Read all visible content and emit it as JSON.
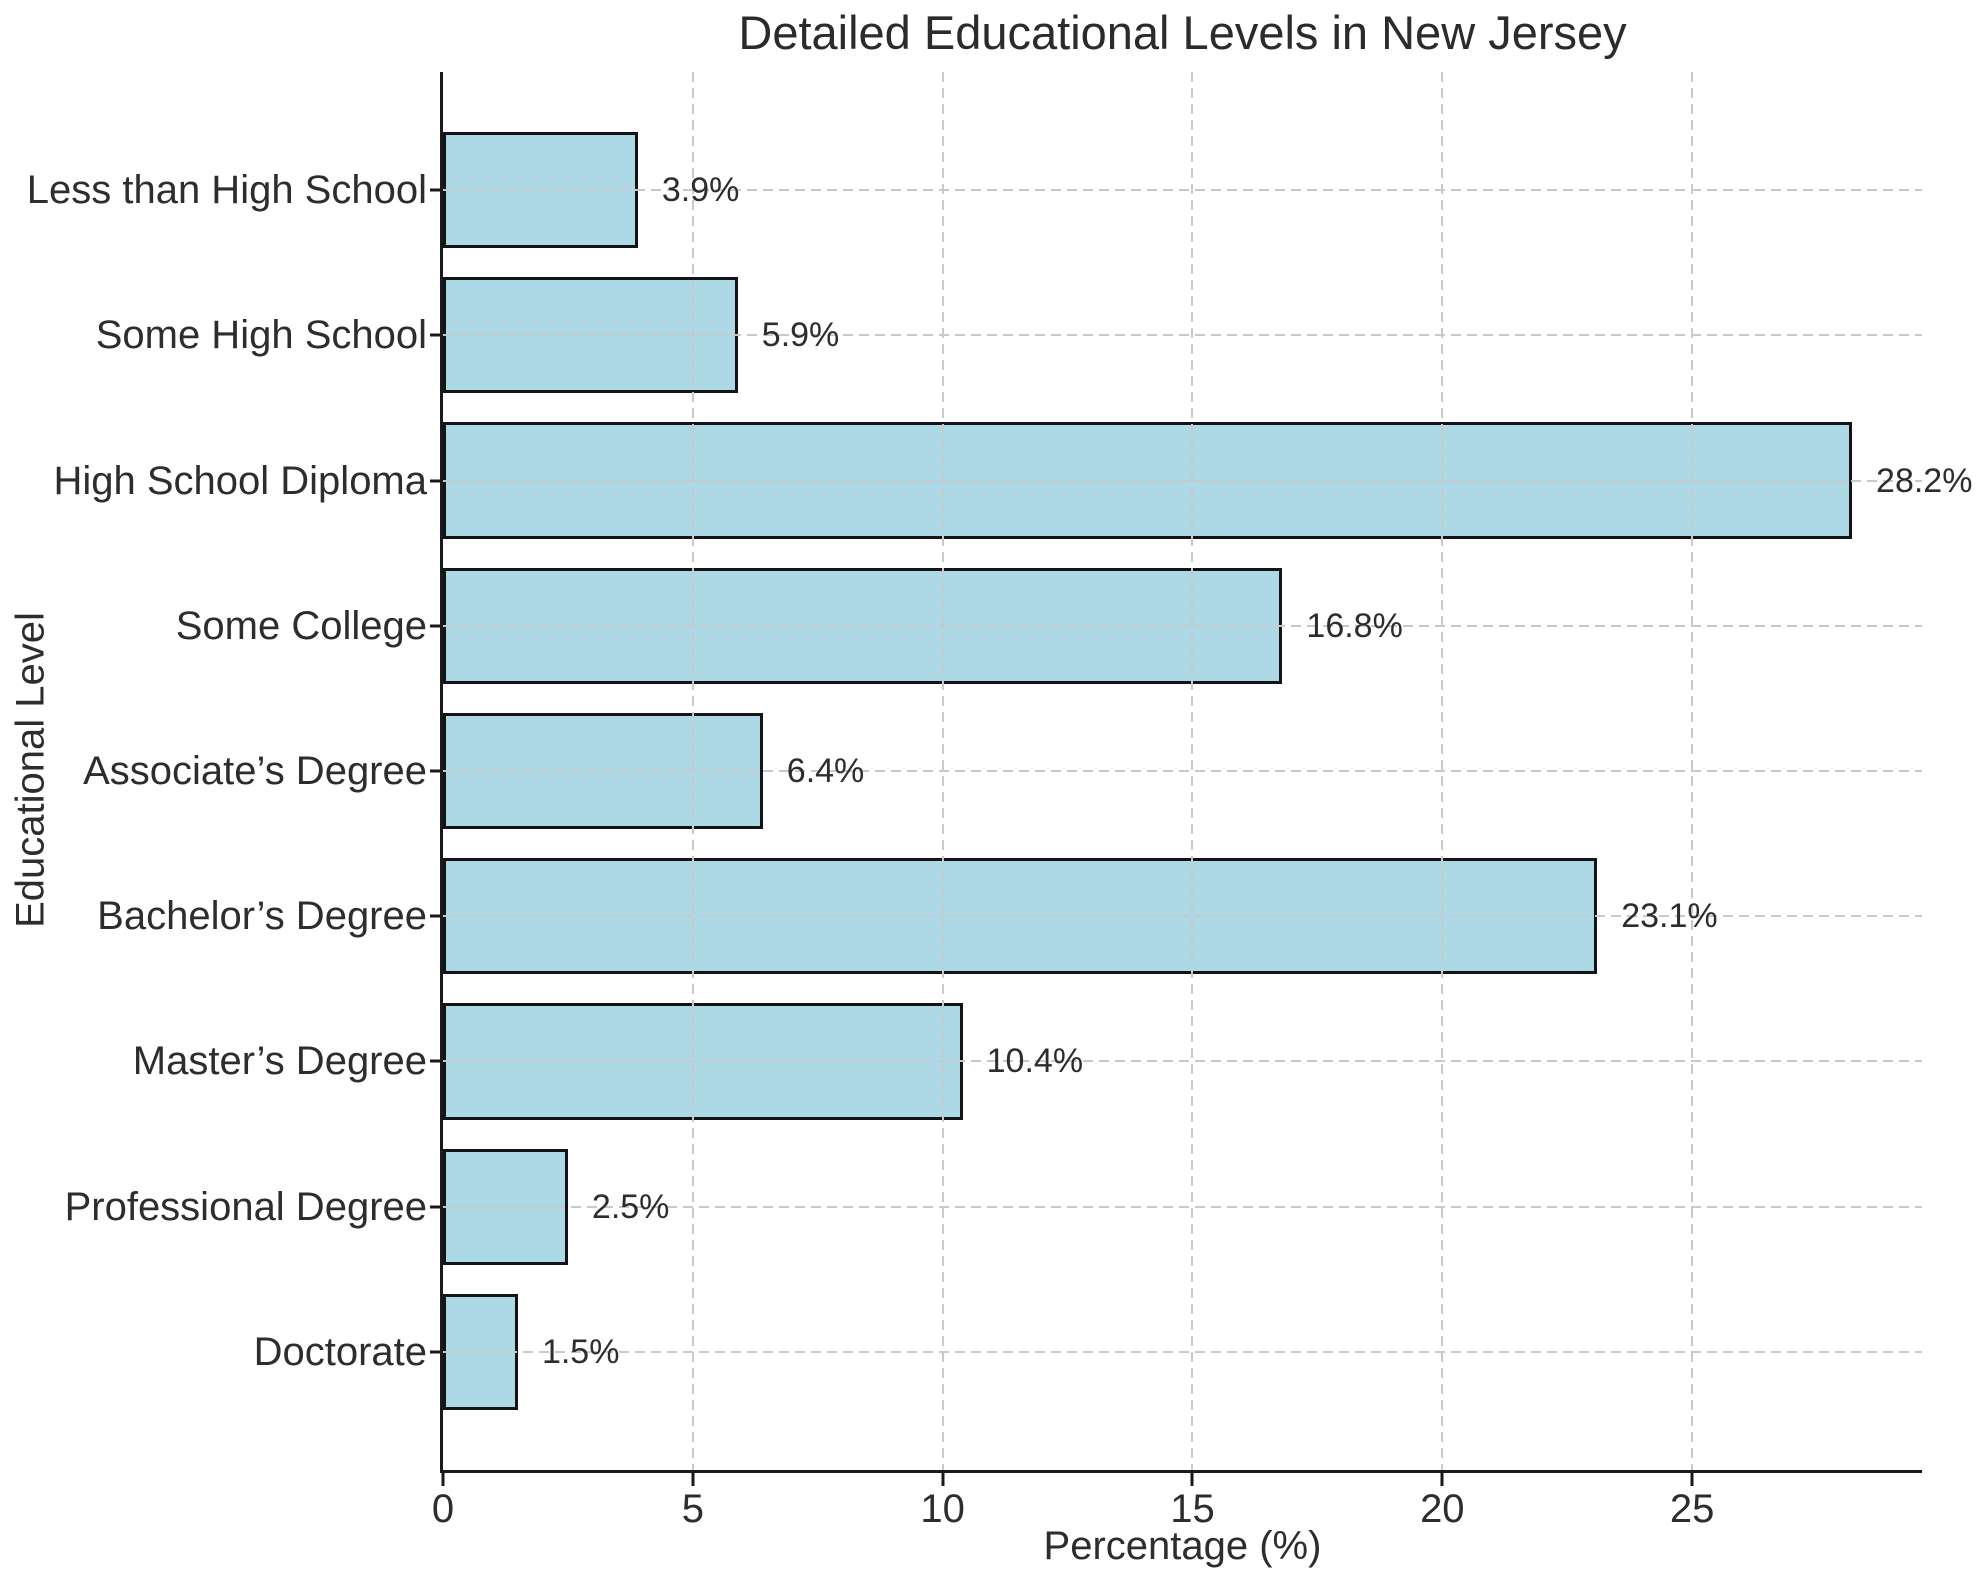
{
  "chart_data": {
    "type": "bar",
    "orientation": "horizontal",
    "title": "Detailed Educational Levels in New Jersey",
    "xlabel": "Percentage (%)",
    "ylabel": "Educational Level",
    "categories": [
      "Less than High School",
      "Some High School",
      "High School Diploma",
      "Some College",
      "Associate’s Degree",
      "Bachelor’s Degree",
      "Master’s Degree",
      "Professional Degree",
      "Doctorate"
    ],
    "values": [
      3.9,
      5.9,
      28.2,
      16.8,
      6.4,
      23.1,
      10.4,
      2.5,
      1.5
    ],
    "value_labels": [
      "3.9%",
      "5.9%",
      "28.2%",
      "16.8%",
      "6.4%",
      "23.1%",
      "10.4%",
      "2.5%",
      "1.5%"
    ],
    "xlim": [
      0,
      29.6
    ],
    "xticks": [
      0,
      5,
      10,
      15,
      20,
      25
    ],
    "xtick_labels": [
      "0",
      "5",
      "10",
      "15",
      "20",
      "25"
    ],
    "bar_height_fraction": 0.8,
    "grid": {
      "style": "dashed",
      "axes": "both",
      "color": "#c9c9c9",
      "above_bars": true
    },
    "legend": "none",
    "colors": {
      "bar_fill": "#ADD8E6",
      "bar_edge": "#141414",
      "text": "#2d2d2d",
      "background": "#ffffff"
    }
  }
}
